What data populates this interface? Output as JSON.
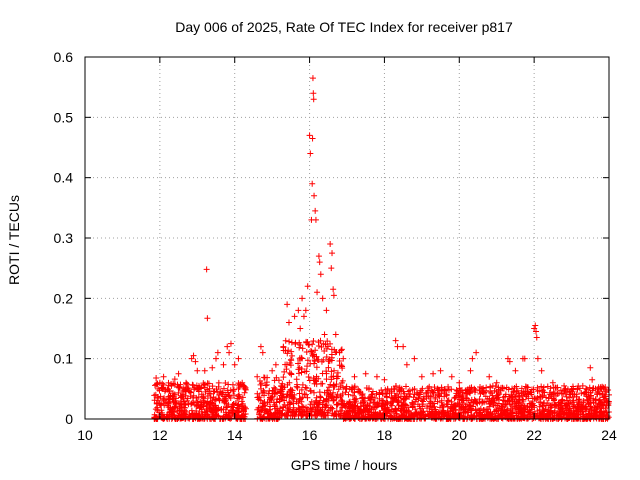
{
  "chart_data": {
    "type": "scatter",
    "title": "Day 006 of 2025, Rate Of TEC Index for receiver p817",
    "xlabel": "GPS time / hours",
    "ylabel": "ROTI / TECUs",
    "xlim": [
      10,
      24
    ],
    "ylim": [
      0,
      0.6
    ],
    "xticks": [
      10,
      12,
      14,
      16,
      18,
      20,
      22,
      24
    ],
    "yticks": [
      0,
      0.1,
      0.2,
      0.3,
      0.4,
      0.5,
      0.6
    ],
    "xtick_labels": [
      "10",
      "12",
      "14",
      "16",
      "18",
      "20",
      "22",
      "24"
    ],
    "ytick_labels": [
      "0",
      "0.1",
      "0.2",
      "0.3",
      "0.4",
      "0.5",
      "0.6"
    ],
    "grid": true,
    "marker": "+",
    "color": "#ff0000",
    "series": [
      {
        "name": "ROTI",
        "points": [
          [
            11.9,
            0.068
          ],
          [
            11.95,
            0.05
          ],
          [
            12.0,
            0.06
          ],
          [
            12.1,
            0.07
          ],
          [
            12.3,
            0.058
          ],
          [
            12.4,
            0.066
          ],
          [
            12.5,
            0.075
          ],
          [
            12.7,
            0.06
          ],
          [
            12.85,
            0.1
          ],
          [
            12.9,
            0.105
          ],
          [
            12.95,
            0.095
          ],
          [
            13.0,
            0.08
          ],
          [
            13.2,
            0.08
          ],
          [
            13.25,
            0.248
          ],
          [
            13.27,
            0.167
          ],
          [
            13.4,
            0.085
          ],
          [
            13.5,
            0.1
          ],
          [
            13.55,
            0.11
          ],
          [
            13.7,
            0.09
          ],
          [
            13.8,
            0.12
          ],
          [
            13.85,
            0.11
          ],
          [
            13.9,
            0.125
          ],
          [
            14.0,
            0.09
          ],
          [
            14.1,
            0.1
          ],
          [
            14.2,
            0.06
          ],
          [
            14.6,
            0.07
          ],
          [
            14.7,
            0.12
          ],
          [
            14.75,
            0.11
          ],
          [
            15.0,
            0.08
          ],
          [
            15.1,
            0.09
          ],
          [
            15.3,
            0.12
          ],
          [
            15.4,
            0.19
          ],
          [
            15.45,
            0.16
          ],
          [
            15.6,
            0.17
          ],
          [
            15.7,
            0.18
          ],
          [
            15.75,
            0.15
          ],
          [
            15.8,
            0.2
          ],
          [
            15.85,
            0.17
          ],
          [
            15.9,
            0.18
          ],
          [
            15.95,
            0.22
          ],
          [
            16.0,
            0.47
          ],
          [
            16.02,
            0.44
          ],
          [
            16.05,
            0.33
          ],
          [
            16.07,
            0.39
          ],
          [
            16.08,
            0.465
          ],
          [
            16.09,
            0.565
          ],
          [
            16.1,
            0.54
          ],
          [
            16.11,
            0.53
          ],
          [
            16.12,
            0.37
          ],
          [
            16.15,
            0.345
          ],
          [
            16.17,
            0.33
          ],
          [
            16.2,
            0.21
          ],
          [
            16.25,
            0.27
          ],
          [
            16.27,
            0.26
          ],
          [
            16.3,
            0.24
          ],
          [
            16.35,
            0.2
          ],
          [
            16.4,
            0.14
          ],
          [
            16.45,
            0.18
          ],
          [
            16.55,
            0.29
          ],
          [
            16.58,
            0.25
          ],
          [
            16.6,
            0.275
          ],
          [
            16.63,
            0.215
          ],
          [
            16.65,
            0.205
          ],
          [
            16.7,
            0.14
          ],
          [
            16.8,
            0.11
          ],
          [
            16.9,
            0.1
          ],
          [
            17.2,
            0.07
          ],
          [
            17.5,
            0.075
          ],
          [
            17.8,
            0.07
          ],
          [
            18.0,
            0.065
          ],
          [
            18.3,
            0.13
          ],
          [
            18.35,
            0.12
          ],
          [
            18.5,
            0.12
          ],
          [
            18.6,
            0.09
          ],
          [
            18.8,
            0.1
          ],
          [
            19.0,
            0.07
          ],
          [
            19.3,
            0.075
          ],
          [
            19.5,
            0.08
          ],
          [
            19.8,
            0.07
          ],
          [
            20.0,
            0.06
          ],
          [
            20.3,
            0.08
          ],
          [
            20.35,
            0.1
          ],
          [
            20.45,
            0.11
          ],
          [
            20.8,
            0.07
          ],
          [
            21.0,
            0.06
          ],
          [
            21.3,
            0.1
          ],
          [
            21.35,
            0.095
          ],
          [
            21.5,
            0.08
          ],
          [
            21.7,
            0.1
          ],
          [
            21.75,
            0.1
          ],
          [
            22.0,
            0.15
          ],
          [
            22.03,
            0.155
          ],
          [
            22.05,
            0.145
          ],
          [
            22.07,
            0.135
          ],
          [
            22.1,
            0.1
          ],
          [
            22.2,
            0.08
          ],
          [
            22.5,
            0.06
          ],
          [
            22.8,
            0.055
          ],
          [
            23.0,
            0.05
          ],
          [
            23.3,
            0.055
          ],
          [
            23.5,
            0.085
          ],
          [
            23.55,
            0.065
          ],
          [
            23.8,
            0.05
          ],
          [
            23.9,
            0.045
          ],
          [
            24.0,
            0.04
          ]
        ],
        "baseline": {
          "segments": [
            {
              "x_range": [
                11.85,
                14.3
              ],
              "y_range": [
                0.0,
                0.06
              ]
            },
            {
              "x_range": [
                14.6,
                15.3
              ],
              "y_range": [
                0.0,
                0.07
              ]
            },
            {
              "x_range": [
                15.3,
                16.9
              ],
              "y_range": [
                0.005,
                0.13
              ]
            },
            {
              "x_range": [
                16.9,
                24.0
              ],
              "y_range": [
                0.0,
                0.055
              ]
            }
          ],
          "count": 2600
        }
      }
    ]
  }
}
